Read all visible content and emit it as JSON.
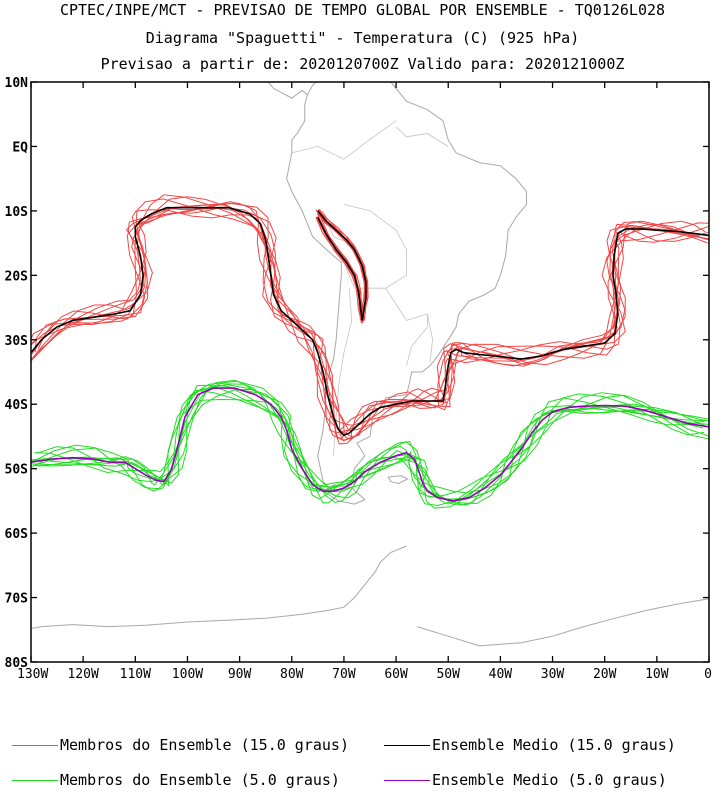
{
  "header": {
    "line1": "CPTEC/INPE/MCT - PREVISAO DE TEMPO GLOBAL POR ENSEMBLE - TQ0126L028",
    "line2": "Diagrama \"Spaguetti\" - Temperatura (C) (925 hPa)",
    "line3": "Previsao a partir de: 2020120700Z  Valido para: 2020121000Z"
  },
  "colors": {
    "members_15": "#f04848",
    "mean_15": "#000000",
    "members_5": "#22dd22",
    "mean_5": "#9900bb",
    "coast": "#a8a8a8"
  },
  "chart_data": {
    "type": "line",
    "title": "Diagrama \"Spaguetti\" - Temperatura (C) (925 hPa)",
    "xlim": [
      -130,
      0
    ],
    "ylim": [
      -80,
      10
    ],
    "x_ticks": [
      {
        "value": -130,
        "label": "130W"
      },
      {
        "value": -120,
        "label": "120W"
      },
      {
        "value": -110,
        "label": "110W"
      },
      {
        "value": -100,
        "label": "100W"
      },
      {
        "value": -90,
        "label": "90W"
      },
      {
        "value": -80,
        "label": "80W"
      },
      {
        "value": -70,
        "label": "70W"
      },
      {
        "value": -60,
        "label": "60W"
      },
      {
        "value": -50,
        "label": "50W"
      },
      {
        "value": -40,
        "label": "40W"
      },
      {
        "value": -30,
        "label": "30W"
      },
      {
        "value": -20,
        "label": "20W"
      },
      {
        "value": -10,
        "label": "10W"
      },
      {
        "value": 0,
        "label": "0"
      }
    ],
    "y_ticks": [
      {
        "value": 10,
        "label": "10N"
      },
      {
        "value": 0,
        "label": "EQ"
      },
      {
        "value": -10,
        "label": "10S"
      },
      {
        "value": -20,
        "label": "20S"
      },
      {
        "value": -30,
        "label": "30S"
      },
      {
        "value": -40,
        "label": "40S"
      },
      {
        "value": -50,
        "label": "50S"
      },
      {
        "value": -60,
        "label": "60S"
      },
      {
        "value": -70,
        "label": "70S"
      },
      {
        "value": -80,
        "label": "80S"
      }
    ],
    "series": [
      {
        "name": "Ensemble Medio (15.0 graus)",
        "role": "mean15",
        "lon": [
          -130,
          -128,
          -125,
          -122,
          -118,
          -114,
          -111,
          -109,
          -108.5,
          -109,
          -110,
          -110,
          -109,
          -107,
          -104,
          -100,
          -96,
          -92,
          -88,
          -86,
          -85,
          -84.5,
          -84,
          -83.5,
          -82,
          -80,
          -78,
          -76,
          -75,
          -74,
          -73,
          -72,
          -71,
          -70,
          -69,
          -67,
          -65,
          -63,
          -60,
          -57,
          -55,
          -53,
          -51,
          -50.5,
          -50,
          -49.5,
          -48.5,
          -47,
          -44,
          -40,
          -36,
          -32,
          -28,
          -24,
          -20,
          -18,
          -17.5,
          -17.8,
          -18.4,
          -18.2,
          -17.8,
          -17.5,
          -16,
          -13,
          -10,
          -6,
          -3,
          0
        ],
        "lat": [
          -32,
          -30,
          -28,
          -27,
          -26.5,
          -26,
          -25.5,
          -23,
          -20,
          -17,
          -14,
          -12.5,
          -11.5,
          -10.5,
          -9.5,
          -9.5,
          -9.5,
          -9.5,
          -10.5,
          -12,
          -14.5,
          -17,
          -20,
          -23,
          -25.5,
          -27,
          -28.5,
          -30,
          -32,
          -35,
          -39,
          -42,
          -44,
          -44.8,
          -44.5,
          -43,
          -41.5,
          -40.5,
          -40,
          -39.5,
          -39.5,
          -39.5,
          -39.5,
          -37,
          -34,
          -32,
          -31.5,
          -32,
          -32.3,
          -32.6,
          -33,
          -32.5,
          -31.5,
          -31,
          -30.5,
          -29,
          -26,
          -23,
          -20,
          -17,
          -15,
          -13.5,
          -12.8,
          -12.8,
          -13,
          -13.2,
          -13.5,
          -13.8
        ]
      },
      {
        "name": "Ensemble Medio (15.0 graus)",
        "role": "mean15",
        "lon": [
          -75,
          -73.5,
          -71.5,
          -69.5,
          -68,
          -66.5,
          -65.8,
          -65.8,
          -66.2,
          -66.5,
          -66.8,
          -67.2,
          -68,
          -69.5,
          -71.5,
          -73.5,
          -75
        ],
        "lat": [
          -10,
          -11.5,
          -13,
          -14.5,
          -16,
          -18.5,
          -21,
          -23.5,
          -25.5,
          -27,
          -25,
          -22.5,
          -20,
          -18,
          -16,
          -13.5,
          -11
        ]
      },
      {
        "name": "Ensemble Medio (5.0 graus)",
        "role": "mean5",
        "lon": [
          -130,
          -126,
          -122,
          -118,
          -115,
          -112,
          -110,
          -108,
          -106,
          -104.5,
          -103,
          -102,
          -100.5,
          -98,
          -95,
          -91,
          -87,
          -84,
          -82,
          -81,
          -80,
          -78,
          -76,
          -74,
          -72,
          -70,
          -68,
          -66,
          -63,
          -60,
          -58,
          -56.5,
          -55.8,
          -55,
          -54,
          -52,
          -49,
          -46,
          -43,
          -40,
          -38,
          -36,
          -34,
          -32,
          -30,
          -27,
          -24,
          -20,
          -16,
          -12,
          -8,
          -4,
          0
        ],
        "lat": [
          -49,
          -48.5,
          -48.3,
          -48.5,
          -49,
          -49,
          -50,
          -51,
          -51.8,
          -52,
          -50,
          -47,
          -42,
          -38.5,
          -37.5,
          -37.5,
          -38.5,
          -40,
          -42,
          -44,
          -47,
          -50,
          -52.5,
          -53.5,
          -53.5,
          -53,
          -52,
          -50.5,
          -49,
          -48,
          -47.5,
          -48.5,
          -50,
          -52,
          -53.5,
          -54.5,
          -55,
          -54.5,
          -53,
          -51,
          -49,
          -47,
          -44.5,
          -42.5,
          -41.2,
          -40.5,
          -40.3,
          -40.2,
          -40.3,
          -41,
          -42,
          -43,
          -43.5
        ]
      }
    ]
  },
  "legend": {
    "members_15": "Membros do Ensemble (15.0 graus)",
    "mean_15": "Ensemble Medio (15.0 graus)",
    "members_5": "Membros do Ensemble (5.0 graus)",
    "mean_5": "Ensemble Medio (5.0 graus)"
  }
}
